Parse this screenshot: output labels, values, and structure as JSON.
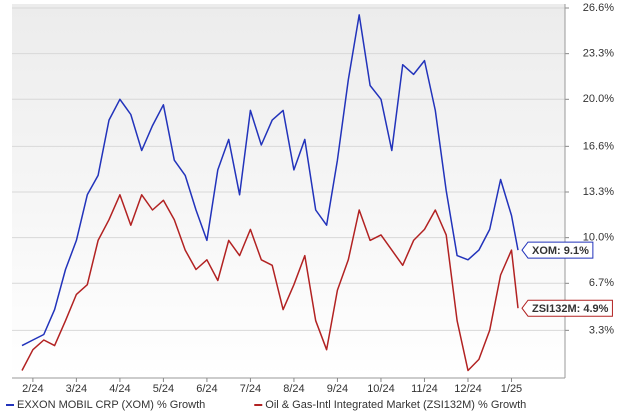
{
  "chart_data": {
    "type": "line",
    "x": [
      -0.25,
      0,
      0.25,
      0.5,
      0.75,
      1,
      1.25,
      1.5,
      1.75,
      2,
      2.25,
      2.5,
      2.75,
      3,
      3.25,
      3.5,
      3.75,
      4,
      4.25,
      4.5,
      4.75,
      5,
      5.25,
      5.5,
      5.75,
      6,
      6.25,
      6.5,
      6.75,
      7,
      7.25,
      7.5,
      7.75,
      8,
      8.25,
      8.5,
      8.75,
      9,
      9.25,
      9.5,
      9.75,
      10,
      10.25,
      10.5,
      10.75,
      11,
      11.15
    ],
    "series": [
      {
        "name": "EXXON MOBIL CRP (XOM) % Growth",
        "color": "#2233bb",
        "values": [
          2.2,
          2.6,
          3.0,
          4.8,
          7.7,
          9.8,
          13.1,
          14.5,
          18.5,
          20.0,
          18.9,
          16.3,
          18.1,
          19.6,
          15.6,
          14.5,
          12.0,
          9.8,
          14.9,
          17.1,
          13.1,
          19.2,
          16.7,
          18.5,
          19.2,
          14.9,
          17.1,
          12.0,
          10.9,
          15.6,
          21.4,
          26.1,
          21.0,
          20.0,
          16.3,
          22.5,
          21.8,
          22.8,
          19.2,
          13.4,
          8.7,
          8.4,
          9.1,
          10.6,
          14.2,
          11.6,
          9.1
        ]
      },
      {
        "name": "Oil & Gas-Intl Integrated Market (ZSI132M) % Growth",
        "color": "#b22222",
        "values": [
          0.4,
          1.9,
          2.6,
          2.2,
          4.0,
          5.9,
          6.6,
          9.8,
          11.3,
          13.1,
          10.9,
          13.1,
          12.0,
          12.7,
          11.3,
          9.1,
          7.7,
          8.4,
          6.9,
          9.8,
          8.7,
          10.6,
          8.4,
          8.0,
          4.8,
          6.6,
          8.7,
          4.0,
          1.9,
          6.2,
          8.4,
          12.0,
          9.8,
          10.2,
          9.1,
          8.0,
          9.8,
          10.6,
          12.0,
          10.2,
          4.0,
          0.4,
          1.2,
          3.3,
          7.3,
          9.1,
          4.9
        ]
      }
    ],
    "end_labels": [
      "XOM: 9.1%",
      "ZSI132M: 4.9%"
    ],
    "xlim": [
      -0.48,
      12.23
    ],
    "xticks": [
      {
        "value": 0,
        "label": "2/24"
      },
      {
        "value": 1,
        "label": "3/24"
      },
      {
        "value": 2,
        "label": "4/24"
      },
      {
        "value": 3,
        "label": "5/24"
      },
      {
        "value": 4,
        "label": "6/24"
      },
      {
        "value": 5,
        "label": "7/24"
      },
      {
        "value": 6,
        "label": "8/24"
      },
      {
        "value": 7,
        "label": "9/24"
      },
      {
        "value": 8,
        "label": "10/24"
      },
      {
        "value": 9,
        "label": "11/24"
      },
      {
        "value": 10,
        "label": "12/24"
      },
      {
        "value": 11,
        "label": "1/25"
      }
    ],
    "ylim": [
      0,
      26.6
    ],
    "yticks": [
      {
        "value": 3.3,
        "label": "3.3%"
      },
      {
        "value": 6.7,
        "label": "6.7%"
      },
      {
        "value": 10.0,
        "label": "10.0%"
      },
      {
        "value": 13.3,
        "label": "13.3%"
      },
      {
        "value": 16.6,
        "label": "16.6%"
      },
      {
        "value": 20.0,
        "label": "20.0%"
      },
      {
        "value": 23.3,
        "label": "23.3%"
      },
      {
        "value": 26.6,
        "label": "26.6%"
      }
    ],
    "grid": true
  }
}
